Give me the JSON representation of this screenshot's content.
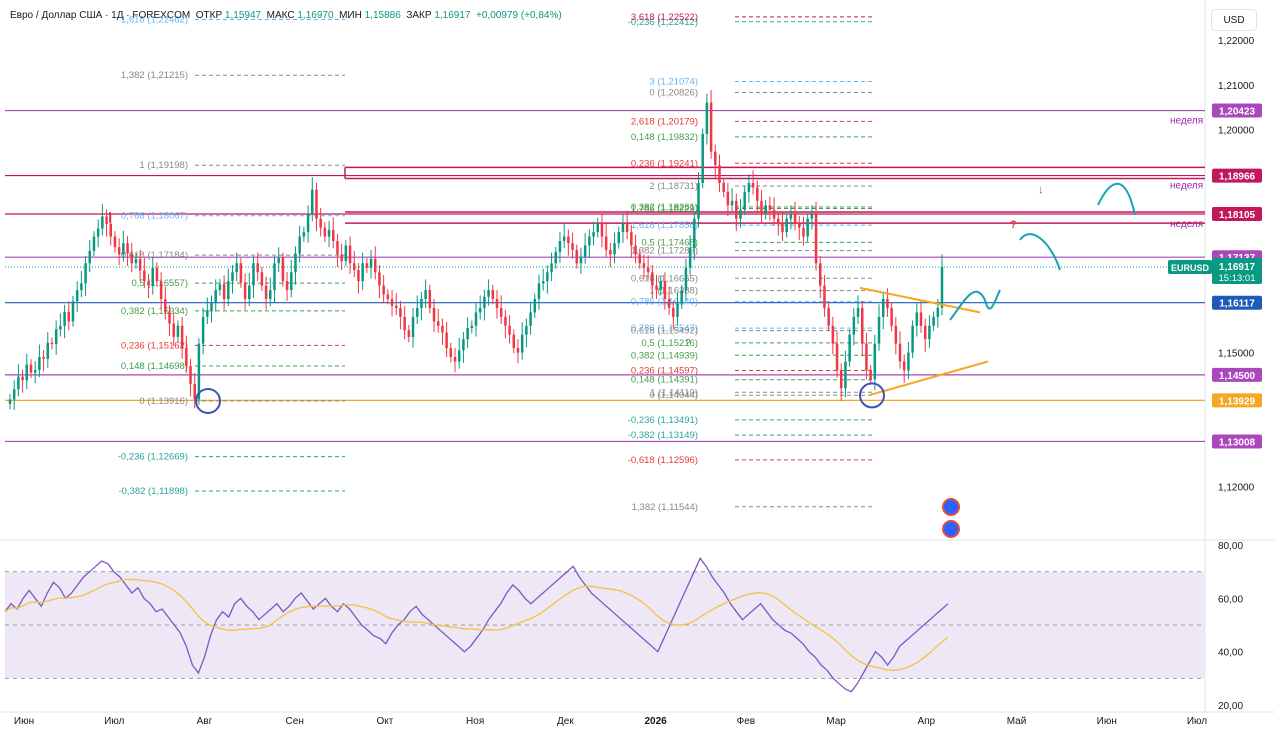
{
  "header": {
    "symbol": "Евро / Доллар США · 1Д · FOREXCOM",
    "open_label": "ОТКР",
    "open": "1,15947",
    "high_label": "МАКС",
    "high": "1,16970",
    "low_label": "МИН",
    "low": "1,15886",
    "close_label": "ЗАКР",
    "close": "1,16917",
    "change": "+0,00979 (+0,84%)"
  },
  "currency_button": "USD",
  "chart_data": {
    "type": "candlestick",
    "title": "Евро / Доллар США · 1Д · FOREXCOM",
    "price_axis": {
      "ylim": [
        1.108,
        1.229
      ],
      "ticks": [
        "1,22000",
        "1,21000",
        "1,20000",
        "1,15000",
        "1,12000"
      ]
    },
    "price_ticks_values": [
      1.22,
      1.21,
      1.2,
      1.15,
      1.12
    ],
    "time_axis": {
      "labels": [
        "Июн",
        "Июл",
        "Авг",
        "Сен",
        "Окт",
        "Ноя",
        "Дек",
        "2026",
        "Фев",
        "Мар",
        "Апр",
        "Май",
        "Июн",
        "Июл"
      ]
    },
    "horizontal_levels": [
      {
        "price": 1.20423,
        "label": "1,20423",
        "color": "#ab47bc",
        "note": "неделя"
      },
      {
        "price": 1.18966,
        "label": "1,18966",
        "color": "#c2185b",
        "note": "неделя"
      },
      {
        "price": 1.18105,
        "label": "1,18105",
        "color": "#c2185b",
        "note": "неделя"
      },
      {
        "price": 1.17137,
        "label": "1,17137",
        "color": "#ab47bc",
        "note": ""
      },
      {
        "price": 1.16117,
        "label": "1,16117",
        "color": "#1e5bb8",
        "note": ""
      },
      {
        "price": 1.145,
        "label": "1,14500",
        "color": "#ab47bc",
        "note": ""
      },
      {
        "price": 1.13929,
        "label": "1,13929",
        "color": "#f5a623",
        "note": ""
      },
      {
        "price": 1.13008,
        "label": "1,13008",
        "color": "#ab47bc",
        "note": ""
      }
    ],
    "last_price": {
      "symbol": "EURUSD",
      "price": "1,16917",
      "countdown": "15:13:01",
      "value": 1.16917
    },
    "fib_labels": [
      {
        "text": "1,618 (1,22462)",
        "color": "#64b5f6",
        "price": 1.22462,
        "col": 0
      },
      {
        "text": "1,382 (1,21215)",
        "color": "#888888",
        "price": 1.21215,
        "col": 0
      },
      {
        "text": "1 (1,19198)",
        "color": "#888888",
        "price": 1.19198,
        "col": 0
      },
      {
        "text": "0,786 (1,18067)",
        "color": "#64b5f6",
        "price": 1.18067,
        "col": 0
      },
      {
        "text": "0,618 (1,17184)",
        "color": "#888888",
        "price": 1.17184,
        "col": 0
      },
      {
        "text": "0,5 (1,16557)",
        "color": "#43a047",
        "price": 1.16557,
        "col": 0
      },
      {
        "text": "0,382 (1,15934)",
        "color": "#43a047",
        "price": 1.15934,
        "col": 0
      },
      {
        "text": "0,236 (1,15162)",
        "color": "#e53935",
        "price": 1.15162,
        "col": 0
      },
      {
        "text": "0,148 (1,14698)",
        "color": "#43a047",
        "price": 1.14698,
        "col": 0
      },
      {
        "text": "0 (1,13916)",
        "color": "#888888",
        "price": 1.13916,
        "col": 0
      },
      {
        "text": "-0,236 (1,12669)",
        "color": "#26a69a",
        "price": 1.12669,
        "col": 0
      },
      {
        "text": "-0,382 (1,11898)",
        "color": "#26a69a",
        "price": 1.11898,
        "col": 0
      },
      {
        "text": "-0,236 (1,22412)",
        "color": "#26a69a",
        "price": 1.22412,
        "col": 1
      },
      {
        "text": "3,618 (1,22522)",
        "color": "#c2185b",
        "price": 1.22522,
        "col": 1
      },
      {
        "text": "3 (1,21074)",
        "color": "#64b5f6",
        "price": 1.21074,
        "col": 1
      },
      {
        "text": "0 (1,20826)",
        "color": "#888888",
        "price": 1.20826,
        "col": 1
      },
      {
        "text": "2,618 (1,20179)",
        "color": "#e53935",
        "price": 1.20179,
        "col": 1
      },
      {
        "text": "0,148 (1,19832)",
        "color": "#43a047",
        "price": 1.19832,
        "col": 1
      },
      {
        "text": "0,236 (1,19241)",
        "color": "#e53935",
        "price": 1.19241,
        "col": 1
      },
      {
        "text": "2 (1,18731)",
        "color": "#888888",
        "price": 1.18731,
        "col": 1
      },
      {
        "text": "0,382 (1,18261)",
        "color": "#43a047",
        "price": 1.18261,
        "col": 1
      },
      {
        "text": "1,786 (1,18229)",
        "color": "#43a047",
        "price": 1.18229,
        "col": 1
      },
      {
        "text": "1,618 (1,17856)",
        "color": "#64b5f6",
        "price": 1.17856,
        "col": 1
      },
      {
        "text": "0,5 (1,17468)",
        "color": "#43a047",
        "price": 1.17468,
        "col": 1
      },
      {
        "text": "1,382 (1,17283)",
        "color": "#888888",
        "price": 1.17283,
        "col": 1
      },
      {
        "text": "0,618 (1,16665)",
        "color": "#888888",
        "price": 1.16665,
        "col": 1
      },
      {
        "text": "1 (1,16388)",
        "color": "#888888",
        "price": 1.16388,
        "col": 1
      },
      {
        "text": "0,786 (1,15547)",
        "color": "#64b5f6",
        "price": 1.15547,
        "col": 1
      },
      {
        "text": "0,786 (1,16140)",
        "color": "#64b5f6",
        "price": 1.1614,
        "col": 1
      },
      {
        "text": "0,618 (1,15492)",
        "color": "#888888",
        "price": 1.15492,
        "col": 1
      },
      {
        "text": "0,5 (1,15216)",
        "color": "#43a047",
        "price": 1.15216,
        "col": 1
      },
      {
        "text": "0,382 (1,14939)",
        "color": "#43a047",
        "price": 1.14939,
        "col": 1
      },
      {
        "text": "0,236 (1,14597)",
        "color": "#e53935",
        "price": 1.14597,
        "col": 1
      },
      {
        "text": "0,148 (1,14391)",
        "color": "#43a047",
        "price": 1.14391,
        "col": 1
      },
      {
        "text": "1 (1,14110)",
        "color": "#888888",
        "price": 1.1411,
        "col": 1
      },
      {
        "text": "0 (1,14044)",
        "color": "#888888",
        "price": 1.14044,
        "col": 1
      },
      {
        "text": "-0,236 (1,13491)",
        "color": "#26a69a",
        "price": 1.13491,
        "col": 1
      },
      {
        "text": "-0,382 (1,13149)",
        "color": "#26a69a",
        "price": 1.13149,
        "col": 1
      },
      {
        "text": "-0,618 (1,12596)",
        "color": "#e53935",
        "price": 1.12596,
        "col": 1
      },
      {
        "text": "1,382 (1,11544)",
        "color": "#888888",
        "price": 1.11544,
        "col": 1
      }
    ],
    "candles_close": [
      1.1395,
      1.1418,
      1.1446,
      1.1438,
      1.1473,
      1.1455,
      1.1461,
      1.149,
      1.1486,
      1.1522,
      1.1519,
      1.1552,
      1.156,
      1.1591,
      1.157,
      1.1615,
      1.164,
      1.1655,
      1.17,
      1.1728,
      1.176,
      1.1778,
      1.1805,
      1.1788,
      1.176,
      1.1736,
      1.172,
      1.1745,
      1.1722,
      1.17,
      1.171,
      1.1684,
      1.166,
      1.165,
      1.169,
      1.166,
      1.162,
      1.159,
      1.1565,
      1.1535,
      1.156,
      1.151,
      1.147,
      1.143,
      1.1395,
      1.152,
      1.158,
      1.1595,
      1.1612,
      1.164,
      1.1653,
      1.162,
      1.166,
      1.168,
      1.17,
      1.1657,
      1.162,
      1.165,
      1.17,
      1.168,
      1.165,
      1.162,
      1.164,
      1.17,
      1.1712,
      1.166,
      1.164,
      1.168,
      1.1722,
      1.176,
      1.177,
      1.181,
      1.1865,
      1.18,
      1.178,
      1.176,
      1.1775,
      1.175,
      1.172,
      1.1705,
      1.174,
      1.17,
      1.1685,
      1.166,
      1.17,
      1.169,
      1.171,
      1.168,
      1.165,
      1.163,
      1.162,
      1.1605,
      1.16,
      1.158,
      1.155,
      1.1535,
      1.158,
      1.16,
      1.162,
      1.164,
      1.16,
      1.157,
      1.156,
      1.1545,
      1.151,
      1.149,
      1.148,
      1.1505,
      1.153,
      1.1555,
      1.156,
      1.159,
      1.16,
      1.1625,
      1.164,
      1.162,
      1.16,
      1.158,
      1.156,
      1.154,
      1.151,
      1.15,
      1.154,
      1.156,
      1.159,
      1.162,
      1.1655,
      1.166,
      1.168,
      1.17,
      1.1725,
      1.175,
      1.176,
      1.1745,
      1.173,
      1.17,
      1.1715,
      1.174,
      1.176,
      1.177,
      1.179,
      1.176,
      1.173,
      1.172,
      1.1745,
      1.177,
      1.179,
      1.177,
      1.174,
      1.172,
      1.17,
      1.169,
      1.168,
      1.165,
      1.164,
      1.166,
      1.162,
      1.16,
      1.158,
      1.161,
      1.164,
      1.169,
      1.1735,
      1.18,
      1.188,
      1.199,
      1.206,
      1.195,
      1.192,
      1.188,
      1.186,
      1.183,
      1.184,
      1.18,
      1.182,
      1.186,
      1.188,
      1.187,
      1.184,
      1.181,
      1.183,
      1.182,
      1.18,
      1.179,
      1.177,
      1.18,
      1.181,
      1.179,
      1.178,
      1.176,
      1.18,
      1.181,
      1.17,
      1.165,
      1.16,
      1.156,
      1.152,
      1.146,
      1.142,
      1.148,
      1.154,
      1.158,
      1.16,
      1.152,
      1.146,
      1.144,
      1.152,
      1.158,
      1.162,
      1.16,
      1.156,
      1.152,
      1.148,
      1.146,
      1.15,
      1.156,
      1.159,
      1.156,
      1.153,
      1.156,
      1.158,
      1.16,
      1.1692
    ],
    "ma_periods_hint": "",
    "rsi": {
      "ylim": [
        20,
        80
      ],
      "ticks": [
        "80,00",
        "60,00",
        "40,00",
        "20,00"
      ],
      "tick_values": [
        80,
        60,
        40,
        20
      ],
      "bands": [
        70,
        50,
        30
      ],
      "values": [
        55,
        58,
        56,
        60,
        63,
        60,
        57,
        62,
        66,
        64,
        60,
        62,
        65,
        68,
        70,
        72,
        74,
        73,
        70,
        68,
        65,
        62,
        64,
        60,
        58,
        55,
        56,
        53,
        50,
        47,
        42,
        35,
        32,
        38,
        46,
        52,
        55,
        53,
        58,
        60,
        57,
        55,
        52,
        54,
        56,
        58,
        55,
        57,
        60,
        62,
        59,
        56,
        58,
        60,
        57,
        55,
        58,
        56,
        53,
        50,
        48,
        46,
        45,
        43,
        47,
        50,
        52,
        55,
        57,
        54,
        52,
        50,
        48,
        46,
        44,
        42,
        40,
        42,
        45,
        48,
        52,
        55,
        58,
        62,
        65,
        63,
        60,
        58,
        60,
        62,
        64,
        66,
        68,
        70,
        72,
        68,
        65,
        62,
        60,
        58,
        56,
        54,
        52,
        50,
        48,
        46,
        44,
        42,
        40,
        45,
        50,
        55,
        60,
        65,
        70,
        75,
        72,
        68,
        65,
        62,
        58,
        55,
        52,
        54,
        56,
        58,
        55,
        52,
        50,
        48,
        47,
        45,
        43,
        40,
        38,
        35,
        33,
        30,
        28,
        26,
        25,
        28,
        32,
        36,
        40,
        38,
        35,
        38,
        42,
        44,
        46,
        48,
        50,
        52,
        54,
        56,
        58
      ]
    },
    "rsi_ma_hint": "moving average of RSI",
    "annotations": [
      "неделя",
      "неделя",
      "неделя",
      "?",
      "?",
      "?"
    ],
    "triangle": {
      "upper_from": 1.1645,
      "upper_to": 1.159,
      "lower_from": 1.1405,
      "lower_to": 1.148
    },
    "circles": [
      {
        "date_label": "Авг",
        "price": 1.13916
      },
      {
        "date_label": "Мар",
        "price": 1.1404
      }
    ]
  },
  "colors": {
    "up": "#089981",
    "down": "#f23645",
    "rsi_line": "#7e57c2",
    "rsi_ma": "#f5c242",
    "rsi_band": "#ede7f6",
    "fib_dash": "#9e9e9e",
    "drawing": "#17a2b8",
    "triangle": "#f5a623"
  }
}
